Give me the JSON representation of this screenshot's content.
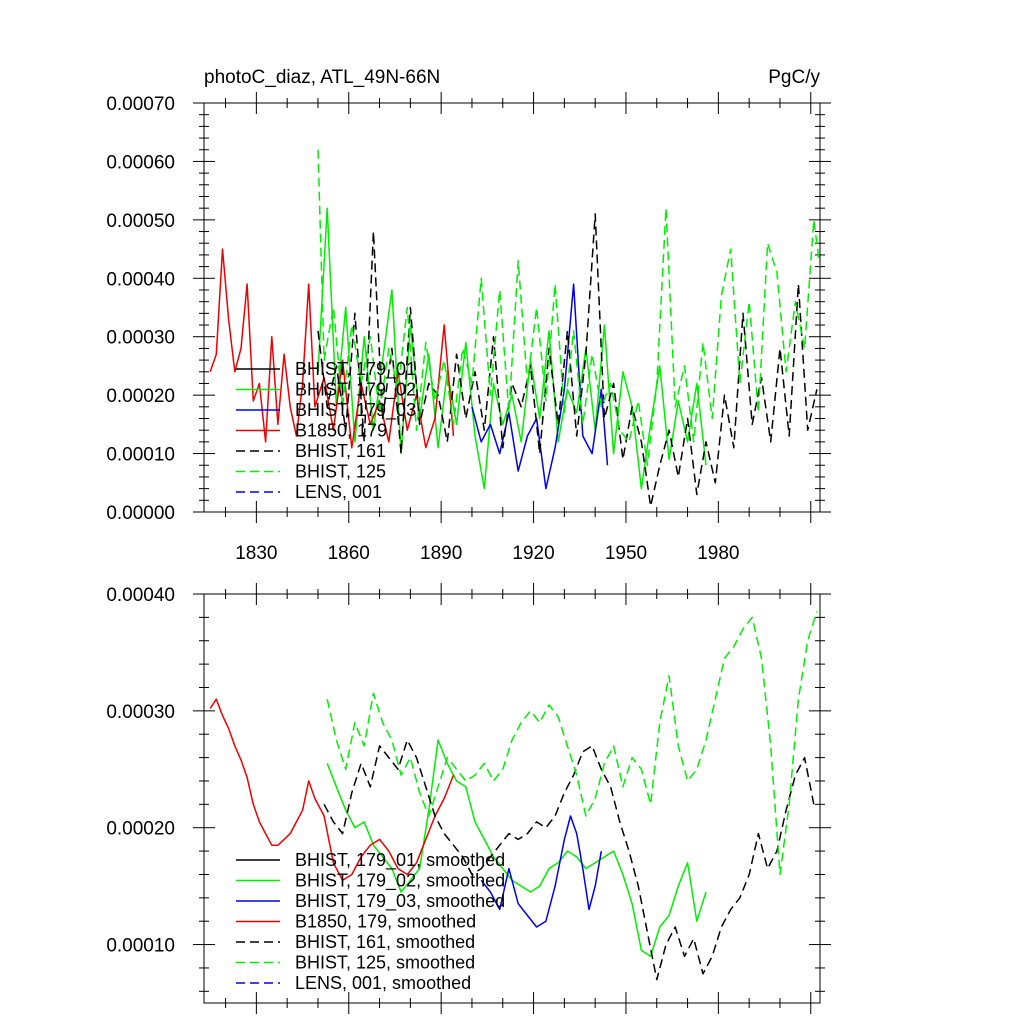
{
  "figure": {
    "title_left": "photoC_diaz, ATL_49N-66N",
    "title_right": "PgC/y"
  },
  "chart_data": [
    {
      "type": "line",
      "title": "photoC_diaz, ATL_49N-66N",
      "units": "PgC/y",
      "xlabel": "",
      "ylabel": "",
      "xlim": [
        1813,
        2013
      ],
      "ylim": [
        0,
        0.0007
      ],
      "x_ticks": [
        1830,
        1860,
        1890,
        1920,
        1950,
        1980
      ],
      "x_tick_labels": [
        "1830",
        "1860",
        "1890",
        "1920",
        "1950",
        "1980"
      ],
      "y_ticks": [
        0,
        0.0001,
        0.0002,
        0.0003,
        0.0004,
        0.0005,
        0.0006,
        0.0007
      ],
      "y_tick_labels": [
        "0.00000",
        "0.00010",
        "0.00020",
        "0.00030",
        "0.00040",
        "0.00050",
        "0.00060",
        "0.00070"
      ],
      "grid": false,
      "legend_position": "bottom-left",
      "series": [
        {
          "name": "BHIST, 179_01",
          "color": "#000000",
          "dash": "solid",
          "x": [],
          "values": []
        },
        {
          "name": "BHIST, 179_02",
          "color": "#00ee00",
          "dash": "solid",
          "x": [
            1850,
            1853,
            1856,
            1859,
            1862,
            1865,
            1868,
            1871,
            1874,
            1877,
            1880,
            1883,
            1886,
            1889,
            1892,
            1895,
            1898,
            1901,
            1904,
            1907,
            1910,
            1913,
            1916,
            1919,
            1922,
            1925,
            1928,
            1931,
            1934,
            1937,
            1940,
            1943,
            1946,
            1949,
            1952,
            1955,
            1958,
            1961,
            1964,
            1967,
            1970,
            1973,
            1976
          ],
          "values": [
            0.00024,
            0.00052,
            0.00018,
            0.00035,
            0.00012,
            0.0003,
            0.00014,
            0.00026,
            0.00038,
            0.0001,
            0.00032,
            0.00016,
            0.00027,
            0.00011,
            0.00024,
            0.00015,
            0.00029,
            0.00013,
            4e-05,
            0.00022,
            0.00015,
            0.0002,
            0.00012,
            0.00026,
            0.00016,
            0.00031,
            0.00012,
            0.00021,
            0.00017,
            0.00028,
            0.00014,
            0.00032,
            0.0001,
            0.00024,
            0.00018,
            4e-05,
            0.00015,
            0.00025,
            9e-05,
            0.00019,
            0.00012,
            0.00022,
            8e-05
          ]
        },
        {
          "name": "BHIST, 179_03",
          "color": "#0000ee",
          "dash": "solid",
          "x": [
            1900,
            1903,
            1906,
            1909,
            1912,
            1915,
            1918,
            1921,
            1924,
            1927,
            1930,
            1933,
            1936,
            1939,
            1942,
            1944
          ],
          "values": [
            0.00018,
            0.00012,
            0.00015,
            0.0001,
            0.00017,
            7e-05,
            0.00013,
            0.00016,
            4e-05,
            0.00011,
            0.00021,
            0.00039,
            0.00013,
            0.0001,
            0.00021,
            8e-05
          ]
        },
        {
          "name": "B1850, 179",
          "color": "#ee0000",
          "dash": "solid",
          "x": [
            1815,
            1817,
            1819,
            1821,
            1823,
            1825,
            1827,
            1829,
            1831,
            1833,
            1835,
            1837,
            1839,
            1841,
            1843,
            1845,
            1847,
            1849,
            1852,
            1855,
            1858,
            1861,
            1864,
            1867,
            1870,
            1873,
            1876,
            1879,
            1882,
            1885,
            1888,
            1891,
            1894
          ],
          "values": [
            0.00024,
            0.00027,
            0.00045,
            0.00033,
            0.00024,
            0.00028,
            0.00039,
            0.00019,
            0.00022,
            0.00012,
            0.0003,
            0.00015,
            0.00027,
            0.00018,
            0.00013,
            0.00022,
            0.00039,
            0.00018,
            0.00023,
            0.00014,
            0.00026,
            0.00011,
            0.00022,
            0.00015,
            0.00019,
            0.00012,
            0.00024,
            0.00014,
            0.0002,
            0.00011,
            0.00016,
            0.00032,
            0.00013
          ]
        },
        {
          "name": "BHIST, 161",
          "color": "#000000",
          "dash": "dashed",
          "x": [
            1850,
            1853,
            1856,
            1859,
            1862,
            1865,
            1868,
            1871,
            1874,
            1877,
            1880,
            1883,
            1886,
            1889,
            1892,
            1895,
            1898,
            1901,
            1904,
            1907,
            1910,
            1913,
            1916,
            1919,
            1922,
            1925,
            1928,
            1931,
            1934,
            1937,
            1940,
            1943,
            1946,
            1949,
            1952,
            1955,
            1958,
            1961,
            1964,
            1967,
            1970,
            1973,
            1976,
            1979,
            1982,
            1985,
            1988,
            1991,
            1994,
            1997,
            2000,
            2003,
            2006,
            2009,
            2012
          ],
          "values": [
            0.00031,
            0.00018,
            0.00025,
            0.00014,
            0.00034,
            0.00012,
            0.00048,
            0.00016,
            0.00028,
            0.0001,
            0.00035,
            0.00015,
            0.00022,
            0.0002,
            0.00012,
            0.00027,
            0.00016,
            0.00024,
            0.00014,
            0.0003,
            0.00011,
            0.00022,
            0.00018,
            0.00025,
            0.0001,
            0.00028,
            0.00015,
            0.00031,
            0.00013,
            0.00027,
            0.00051,
            0.00016,
            0.00022,
            9e-05,
            0.00018,
            0.00012,
            1e-05,
            8e-05,
            0.00014,
            6e-05,
            0.00016,
            3e-05,
            0.00012,
            5e-05,
            0.0002,
            0.00011,
            0.00034,
            0.00015,
            0.00023,
            0.00012,
            0.00028,
            0.00013,
            0.00039,
            0.00014,
            0.00021
          ]
        },
        {
          "name": "BHIST, 125",
          "color": "#00ee00",
          "dash": "dashed",
          "x": [
            1850,
            1852,
            1855,
            1858,
            1861,
            1864,
            1867,
            1870,
            1873,
            1876,
            1879,
            1882,
            1885,
            1888,
            1891,
            1894,
            1897,
            1900,
            1903,
            1906,
            1909,
            1912,
            1915,
            1918,
            1921,
            1924,
            1927,
            1930,
            1933,
            1936,
            1939,
            1942,
            1945,
            1948,
            1951,
            1954,
            1957,
            1960,
            1963,
            1966,
            1969,
            1972,
            1975,
            1978,
            1981,
            1984,
            1987,
            1990,
            1993,
            1996,
            1999,
            2002,
            2005,
            2008,
            2011,
            2013
          ],
          "values": [
            0.00062,
            0.00026,
            0.00035,
            0.00018,
            0.00032,
            0.00022,
            0.0003,
            0.00017,
            0.00028,
            0.00021,
            0.00035,
            0.00014,
            0.00029,
            0.00019,
            0.00026,
            0.00015,
            0.00028,
            0.00022,
            0.0004,
            0.0002,
            0.00038,
            0.00017,
            0.00043,
            0.00022,
            0.00035,
            0.00019,
            0.00039,
            0.00017,
            0.00031,
            0.00015,
            0.00027,
            0.00018,
            0.00022,
            0.00014,
            0.00012,
            0.00019,
            8e-05,
            0.00022,
            0.00052,
            0.00018,
            0.00025,
            0.00012,
            0.00029,
            0.00016,
            0.00037,
            0.00045,
            0.00022,
            0.00036,
            0.00017,
            0.00046,
            0.00041,
            0.00024,
            0.00036,
            0.00028,
            0.0005,
            0.00042
          ]
        },
        {
          "name": "LENS, 001",
          "color": "#0000ee",
          "dash": "dashed",
          "x": [],
          "values": []
        }
      ]
    },
    {
      "type": "line",
      "title": "",
      "xlabel": "",
      "ylabel": "",
      "xlim": [
        1813,
        2013
      ],
      "ylim": [
        5e-05,
        0.0004
      ],
      "x_ticks": [
        1830,
        1860,
        1890,
        1920,
        1950,
        1980
      ],
      "x_tick_labels": [],
      "y_ticks": [
        0.0001,
        0.0002,
        0.0003,
        0.0004
      ],
      "y_tick_labels": [
        "0.00010",
        "0.00020",
        "0.00030",
        "0.00040"
      ],
      "grid": false,
      "legend_position": "bottom-left",
      "series": [
        {
          "name": "BHIST, 179_01, smoothed",
          "color": "#000000",
          "dash": "solid",
          "x": [],
          "values": []
        },
        {
          "name": "BHIST, 179_02, smoothed",
          "color": "#00ee00",
          "dash": "solid",
          "x": [
            1853,
            1856,
            1859,
            1862,
            1865,
            1868,
            1871,
            1874,
            1877,
            1880,
            1883,
            1886,
            1889,
            1892,
            1895,
            1898,
            1901,
            1904,
            1907,
            1910,
            1913,
            1916,
            1919,
            1922,
            1925,
            1928,
            1931,
            1934,
            1937,
            1940,
            1943,
            1946,
            1949,
            1952,
            1955,
            1958,
            1961,
            1964,
            1967,
            1970,
            1973,
            1976
          ],
          "values": [
            0.000255,
            0.000235,
            0.000215,
            0.0002,
            0.000205,
            0.000185,
            0.000175,
            0.000165,
            0.000145,
            0.000155,
            0.000165,
            0.000215,
            0.000275,
            0.000255,
            0.00024,
            0.000235,
            0.000205,
            0.00019,
            0.000175,
            0.000165,
            0.000155,
            0.00015,
            0.000145,
            0.00015,
            0.000165,
            0.00017,
            0.00018,
            0.000175,
            0.000165,
            0.00017,
            0.000175,
            0.00018,
            0.00016,
            0.000135,
            9.5e-05,
            9e-05,
            0.000115,
            0.000125,
            0.00015,
            0.00017,
            0.00012,
            0.000145
          ]
        },
        {
          "name": "BHIST, 179_03, smoothed",
          "color": "#0000ee",
          "dash": "solid",
          "x": [
            1903,
            1906,
            1909,
            1912,
            1915,
            1918,
            1921,
            1924,
            1927,
            1930,
            1932,
            1934,
            1936,
            1938,
            1940,
            1942
          ],
          "values": [
            0.000155,
            0.000145,
            0.00013,
            0.000165,
            0.000135,
            0.000125,
            0.000115,
            0.00012,
            0.00015,
            0.00019,
            0.00021,
            0.000195,
            0.000165,
            0.00013,
            0.00015,
            0.00018
          ]
        },
        {
          "name": "B1850, 179, smoothed",
          "color": "#ee0000",
          "dash": "solid",
          "x": [
            1815,
            1817,
            1819,
            1821,
            1823,
            1825,
            1827,
            1829,
            1831,
            1833,
            1835,
            1837,
            1839,
            1841,
            1843,
            1845,
            1847,
            1849,
            1852,
            1855,
            1858,
            1861,
            1864,
            1867,
            1870,
            1873,
            1876,
            1879,
            1882,
            1885,
            1888,
            1891,
            1894
          ],
          "values": [
            0.000302,
            0.00031,
            0.000296,
            0.000285,
            0.00027,
            0.000258,
            0.000243,
            0.00022,
            0.000205,
            0.000195,
            0.000185,
            0.000185,
            0.00019,
            0.000195,
            0.000205,
            0.000215,
            0.00024,
            0.000225,
            0.00021,
            0.00017,
            0.000155,
            0.00016,
            0.000175,
            0.000185,
            0.00019,
            0.00018,
            0.000165,
            0.00016,
            0.00017,
            0.00019,
            0.00021,
            0.000225,
            0.000245
          ]
        },
        {
          "name": "BHIST, 161, smoothed",
          "color": "#000000",
          "dash": "dashed",
          "x": [
            1852,
            1855,
            1858,
            1861,
            1864,
            1867,
            1870,
            1873,
            1876,
            1879,
            1882,
            1885,
            1888,
            1891,
            1894,
            1897,
            1900,
            1903,
            1906,
            1909,
            1912,
            1915,
            1918,
            1921,
            1924,
            1927,
            1930,
            1933,
            1936,
            1939,
            1942,
            1945,
            1948,
            1951,
            1954,
            1957,
            1960,
            1963,
            1966,
            1969,
            1972,
            1975,
            1978,
            1981,
            1984,
            1987,
            1990,
            1993,
            1996,
            1999,
            2002,
            2005,
            2008,
            2011
          ],
          "values": [
            0.00022,
            0.000205,
            0.000195,
            0.00023,
            0.000255,
            0.000235,
            0.00027,
            0.00026,
            0.00025,
            0.000275,
            0.00026,
            0.000235,
            0.00021,
            0.000195,
            0.000185,
            0.000175,
            0.00016,
            0.000165,
            0.000175,
            0.000185,
            0.000195,
            0.00019,
            0.000195,
            0.000205,
            0.0002,
            0.00021,
            0.00023,
            0.000245,
            0.000265,
            0.00027,
            0.00025,
            0.000235,
            0.000205,
            0.00018,
            0.00015,
            0.00011,
            7e-05,
            0.0001,
            0.000115,
            9e-05,
            0.000105,
            7.5e-05,
            9e-05,
            0.000115,
            0.00013,
            0.00014,
            0.00016,
            0.000195,
            0.000165,
            0.00018,
            0.000215,
            0.000245,
            0.00026,
            0.00022
          ]
        },
        {
          "name": "BHIST, 125, smoothed",
          "color": "#00ee00",
          "dash": "dashed",
          "x": [
            1853,
            1856,
            1859,
            1862,
            1865,
            1868,
            1871,
            1874,
            1877,
            1880,
            1883,
            1886,
            1889,
            1892,
            1895,
            1898,
            1901,
            1904,
            1907,
            1910,
            1913,
            1916,
            1919,
            1922,
            1925,
            1928,
            1931,
            1934,
            1937,
            1940,
            1943,
            1946,
            1949,
            1952,
            1955,
            1958,
            1961,
            1964,
            1967,
            1970,
            1973,
            1976,
            1979,
            1982,
            1985,
            1988,
            1991,
            1994,
            1997,
            2000,
            2003,
            2006,
            2009,
            2012
          ],
          "values": [
            0.00031,
            0.000275,
            0.00025,
            0.00029,
            0.00027,
            0.000315,
            0.00029,
            0.000275,
            0.000245,
            0.00026,
            0.00023,
            0.00021,
            0.000235,
            0.00026,
            0.00025,
            0.00024,
            0.000245,
            0.000255,
            0.00024,
            0.00025,
            0.000275,
            0.00029,
            0.0003,
            0.00029,
            0.000305,
            0.000295,
            0.00027,
            0.000245,
            0.00021,
            0.000225,
            0.000255,
            0.00027,
            0.000235,
            0.00026,
            0.00025,
            0.00022,
            0.00029,
            0.00033,
            0.00027,
            0.00024,
            0.00025,
            0.000275,
            0.00031,
            0.000345,
            0.000355,
            0.00037,
            0.00038,
            0.000345,
            0.00027,
            0.00016,
            0.00022,
            0.00031,
            0.00036,
            0.000385
          ]
        },
        {
          "name": "LENS, 001, smoothed",
          "color": "#0000ee",
          "dash": "dashed",
          "x": [],
          "values": []
        }
      ]
    }
  ]
}
